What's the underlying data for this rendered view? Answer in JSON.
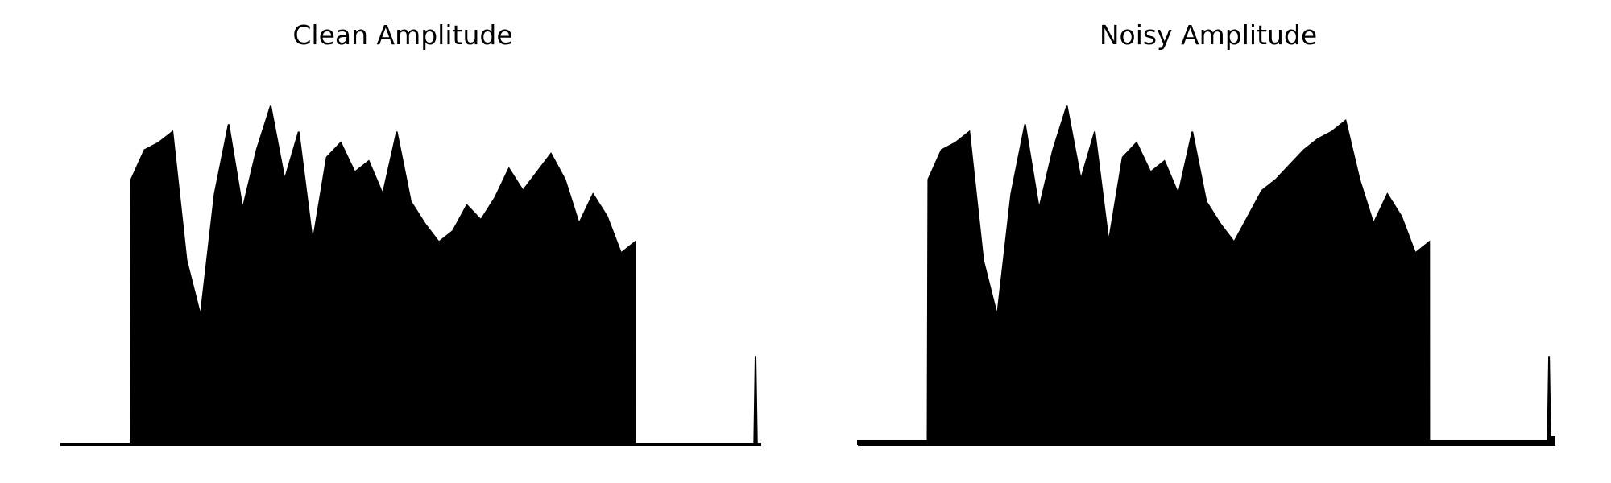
{
  "chart_data": [
    {
      "type": "line",
      "title": "Clean Amplitude",
      "xlabel": "",
      "ylabel": "",
      "grid": false,
      "axes_visible": false,
      "color": "#000000",
      "ylim": [
        0,
        1.0
      ],
      "series": [
        {
          "x": [
            0.0,
            0.1,
            0.101,
            0.12,
            0.14,
            0.16,
            0.18,
            0.2,
            0.22,
            0.24,
            0.26,
            0.28,
            0.3,
            0.32,
            0.34,
            0.36,
            0.38,
            0.4,
            0.42,
            0.44,
            0.46,
            0.48,
            0.5,
            0.52,
            0.54,
            0.56,
            0.58,
            0.6,
            0.62,
            0.64,
            0.66,
            0.68,
            0.7,
            0.72,
            0.74,
            0.76,
            0.78,
            0.8,
            0.82,
            0.8201,
            0.99,
            0.992,
            0.994,
            1.0
          ],
          "y": [
            0.0,
            0.0,
            0.72,
            0.8,
            0.82,
            0.85,
            0.5,
            0.35,
            0.68,
            0.87,
            0.64,
            0.8,
            0.92,
            0.72,
            0.85,
            0.55,
            0.78,
            0.82,
            0.74,
            0.77,
            0.68,
            0.85,
            0.66,
            0.6,
            0.55,
            0.58,
            0.65,
            0.61,
            0.67,
            0.75,
            0.69,
            0.74,
            0.79,
            0.72,
            0.6,
            0.68,
            0.62,
            0.52,
            0.55,
            0.0,
            0.0,
            0.24,
            0.0,
            0.0
          ]
        }
      ]
    },
    {
      "type": "line",
      "title": "Noisy Amplitude",
      "xlabel": "",
      "ylabel": "",
      "grid": false,
      "axes_visible": false,
      "color": "#000000",
      "ylim": [
        0,
        1.0
      ],
      "series": [
        {
          "x": [
            0.0,
            0.1,
            0.101,
            0.12,
            0.14,
            0.16,
            0.18,
            0.2,
            0.22,
            0.24,
            0.26,
            0.28,
            0.3,
            0.32,
            0.34,
            0.36,
            0.38,
            0.4,
            0.42,
            0.44,
            0.46,
            0.48,
            0.5,
            0.52,
            0.54,
            0.56,
            0.58,
            0.6,
            0.62,
            0.64,
            0.66,
            0.68,
            0.7,
            0.72,
            0.74,
            0.76,
            0.78,
            0.8,
            0.82,
            0.8201,
            0.99,
            0.992,
            0.994,
            1.0
          ],
          "y": [
            0.01,
            0.01,
            0.72,
            0.8,
            0.82,
            0.85,
            0.5,
            0.35,
            0.68,
            0.87,
            0.64,
            0.8,
            0.92,
            0.72,
            0.85,
            0.55,
            0.78,
            0.82,
            0.74,
            0.77,
            0.68,
            0.85,
            0.66,
            0.6,
            0.55,
            0.62,
            0.69,
            0.72,
            0.76,
            0.8,
            0.83,
            0.85,
            0.88,
            0.72,
            0.6,
            0.68,
            0.62,
            0.52,
            0.55,
            0.01,
            0.01,
            0.24,
            0.02,
            0.02
          ]
        }
      ]
    }
  ]
}
